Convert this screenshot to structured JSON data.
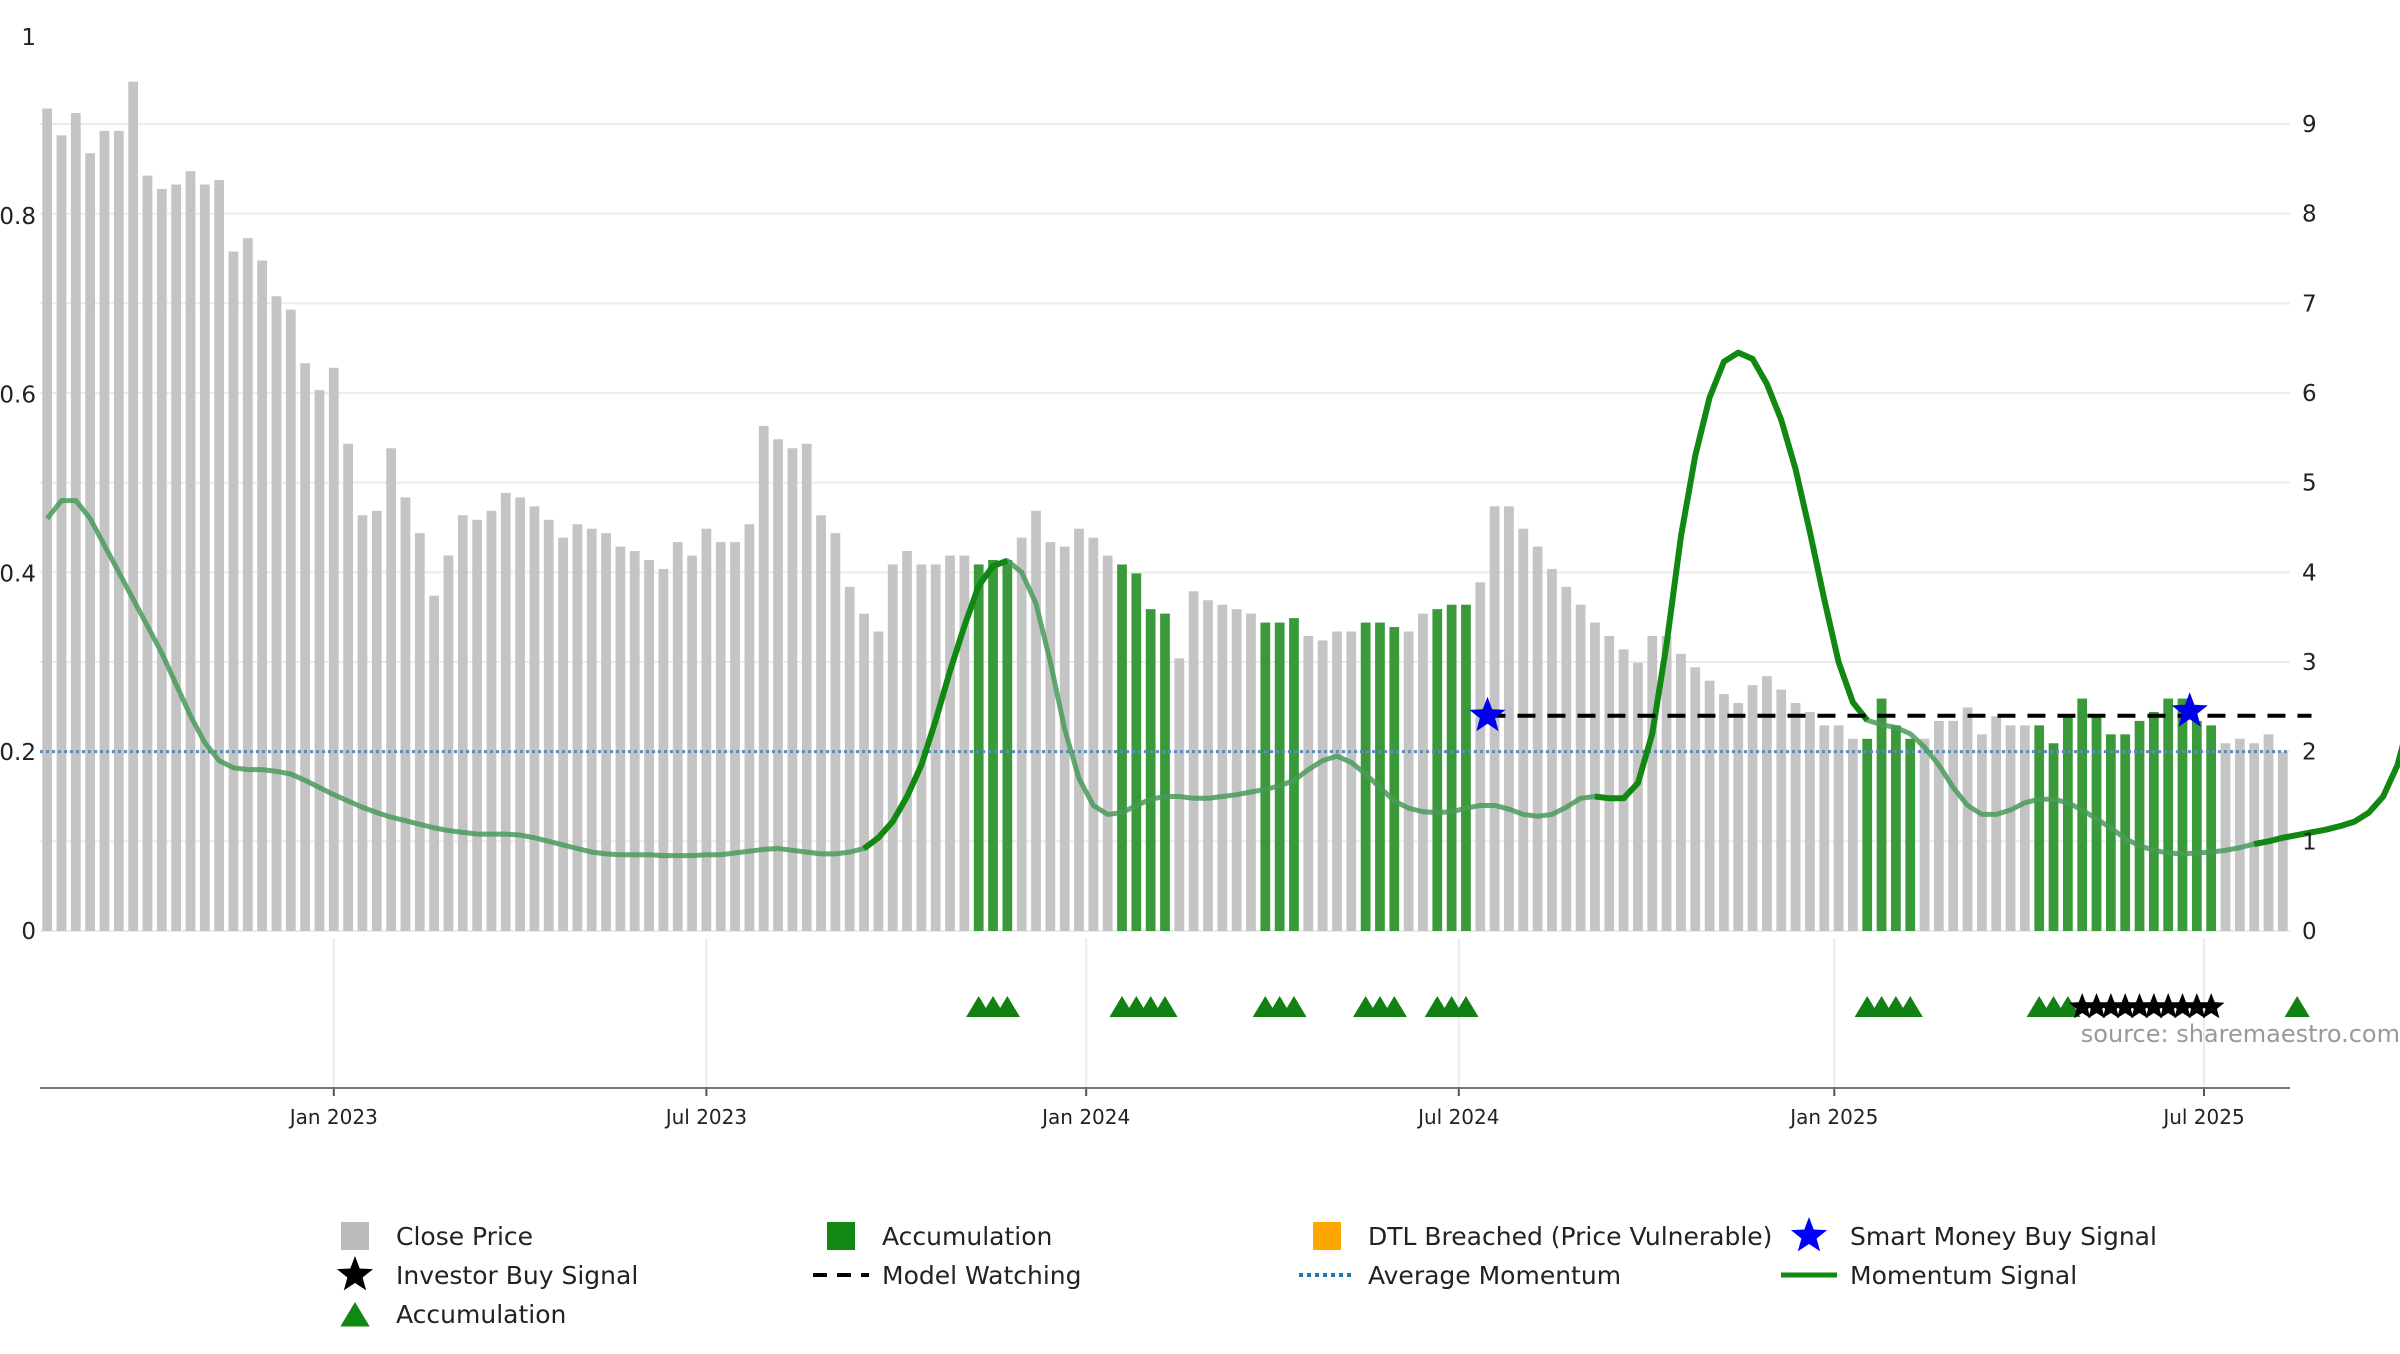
{
  "chart_data": {
    "type": "bar",
    "title": "",
    "x_axis": {
      "ticks": [
        {
          "label": "Jan 2023",
          "week": 20
        },
        {
          "label": "Jul 2023",
          "week": 46
        },
        {
          "label": "Jan 2024",
          "week": 72.5
        },
        {
          "label": "Jul 2024",
          "week": 98.5
        },
        {
          "label": "Jan 2025",
          "week": 124.7
        },
        {
          "label": "Jul 2025",
          "week": 150.5
        }
      ]
    },
    "y_left": {
      "label": "",
      "range": [
        0,
        1
      ],
      "ticks": [
        "0",
        "0.2",
        "0.4",
        "0.6",
        "0.8",
        "1"
      ],
      "tick_values": [
        0,
        0.2,
        0.4,
        0.6,
        0.8,
        1
      ]
    },
    "y_right": {
      "label": "",
      "range": [
        0,
        9
      ],
      "ticks": [
        "0",
        "1",
        "2",
        "3",
        "4",
        "5",
        "6",
        "7",
        "8",
        "9"
      ]
    },
    "close_price": [
      0.92,
      0.89,
      0.915,
      0.87,
      0.895,
      0.895,
      0.95,
      0.845,
      0.83,
      0.835,
      0.85,
      0.835,
      0.84,
      0.76,
      0.775,
      0.75,
      0.71,
      0.695,
      0.635,
      0.605,
      0.63,
      0.545,
      0.465,
      0.47,
      0.54,
      0.485,
      0.445,
      0.375,
      0.42,
      0.465,
      0.46,
      0.47,
      0.49,
      0.485,
      0.475,
      0.46,
      0.44,
      0.455,
      0.45,
      0.445,
      0.43,
      0.425,
      0.415,
      0.405,
      0.435,
      0.42,
      0.45,
      0.435,
      0.435,
      0.455,
      0.565,
      0.55,
      0.54,
      0.545,
      0.465,
      0.445,
      0.385,
      0.355,
      0.335,
      0.41,
      0.425,
      0.41,
      0.41,
      0.42,
      0.42,
      0.41,
      0.415,
      0.415,
      0.44,
      0.47,
      0.435,
      0.43,
      0.45,
      0.44,
      0.42,
      0.41,
      0.4,
      0.36,
      0.355,
      0.305,
      0.38,
      0.37,
      0.365,
      0.36,
      0.355,
      0.345,
      0.345,
      0.35,
      0.33,
      0.325,
      0.335,
      0.335,
      0.345,
      0.345,
      0.34,
      0.335,
      0.355,
      0.36,
      0.365,
      0.365,
      0.39,
      0.475,
      0.475,
      0.45,
      0.43,
      0.405,
      0.385,
      0.365,
      0.345,
      0.33,
      0.315,
      0.3,
      0.33,
      0.33,
      0.31,
      0.295,
      0.28,
      0.265,
      0.255,
      0.275,
      0.285,
      0.27,
      0.255,
      0.245,
      0.23,
      0.23,
      0.215,
      0.215,
      0.26,
      0.23,
      0.215,
      0.215,
      0.235,
      0.235,
      0.25,
      0.22,
      0.24,
      0.23,
      0.23,
      0.23,
      0.21,
      0.24,
      0.26,
      0.24,
      0.22,
      0.22,
      0.235,
      0.245,
      0.26,
      0.26,
      0.235,
      0.23,
      0.21,
      0.215,
      0.21,
      0.22,
      0.2
    ],
    "accumulation_weeks": [
      65,
      66,
      67,
      75,
      76,
      77,
      78,
      85,
      86,
      87,
      92,
      93,
      94,
      97,
      98,
      99,
      127,
      128,
      129,
      130,
      139,
      140,
      141,
      142,
      143,
      144,
      145,
      146,
      147,
      148,
      149,
      150,
      151,
      157
    ],
    "accumulation_markers": [
      {
        "series": "Accumulation",
        "weeks": [
          65,
          66,
          67,
          75,
          76,
          77,
          78,
          85,
          86,
          87,
          92,
          93,
          94,
          97,
          98,
          99,
          127,
          128,
          129,
          130,
          139,
          140,
          141,
          157
        ]
      },
      {
        "series": "Investor Buy Signal",
        "weeks": [
          142,
          143,
          144,
          145,
          146,
          147,
          148,
          149,
          150,
          151
        ]
      }
    ],
    "momentum_signal": [
      4.6,
      4.8,
      4.8,
      4.6,
      4.3,
      4.0,
      3.7,
      3.4,
      3.1,
      2.75,
      2.4,
      2.1,
      1.9,
      1.82,
      1.8,
      1.8,
      1.78,
      1.75,
      1.68,
      1.6,
      1.52,
      1.45,
      1.38,
      1.32,
      1.27,
      1.23,
      1.19,
      1.15,
      1.12,
      1.1,
      1.08,
      1.08,
      1.08,
      1.07,
      1.04,
      1.0,
      0.96,
      0.92,
      0.88,
      0.86,
      0.85,
      0.85,
      0.85,
      0.84,
      0.84,
      0.84,
      0.85,
      0.85,
      0.87,
      0.89,
      0.91,
      0.92,
      0.9,
      0.88,
      0.86,
      0.86,
      0.88,
      0.92,
      1.04,
      1.22,
      1.5,
      1.85,
      2.35,
      2.9,
      3.4,
      3.85,
      4.07,
      4.13,
      4.0,
      3.65,
      3.0,
      2.25,
      1.7,
      1.4,
      1.3,
      1.32,
      1.4,
      1.47,
      1.5,
      1.5,
      1.48,
      1.48,
      1.5,
      1.52,
      1.55,
      1.58,
      1.62,
      1.68,
      1.8,
      1.9,
      1.95,
      1.88,
      1.75,
      1.6,
      1.45,
      1.37,
      1.33,
      1.32,
      1.33,
      1.37,
      1.4,
      1.4,
      1.36,
      1.3,
      1.28,
      1.3,
      1.38,
      1.48,
      1.5,
      1.48,
      1.48,
      1.65,
      2.2,
      3.2,
      4.4,
      5.3,
      5.95,
      6.35,
      6.45,
      6.38,
      6.1,
      5.7,
      5.15,
      4.45,
      3.7,
      3.0,
      2.55,
      2.35,
      2.3,
      2.27,
      2.2,
      2.05,
      1.85,
      1.6,
      1.4,
      1.3,
      1.3,
      1.35,
      1.43,
      1.47,
      1.47,
      1.43,
      1.35,
      1.25,
      1.15,
      1.03,
      0.95,
      0.9,
      0.87,
      0.86,
      0.87,
      0.88,
      0.9,
      0.93,
      0.97,
      1.0,
      1.04,
      1.07,
      1.1,
      1.13,
      1.17,
      1.22,
      1.32,
      1.5,
      1.85,
      2.45,
      3.1,
      3.55,
      2.35,
      1.55,
      1.55
    ],
    "momentum_bold_ranges": [
      [
        57,
        67
      ],
      [
        108,
        127
      ],
      [
        154,
        165
      ]
    ],
    "average_momentum": 2.0,
    "model_watching": {
      "start_week": 100.5,
      "end_week": 158,
      "level": 2.4
    },
    "smart_money_buy_signals": [
      {
        "week": 100.5,
        "level": 2.4
      },
      {
        "week": 149.5,
        "level": 2.45
      }
    ],
    "watermark": "source: sharemaestro.com",
    "legend": {
      "placement": "bottom",
      "items": [
        {
          "label": "Close Price",
          "kind": "square",
          "color": "#bbbbbb"
        },
        {
          "label": "Accumulation",
          "kind": "square",
          "color": "#118811"
        },
        {
          "label": "DTL Breached (Price Vulnerable)",
          "kind": "square",
          "color": "#ffa500"
        },
        {
          "label": "Smart Money Buy Signal",
          "kind": "star",
          "color": "#0000ff"
        },
        {
          "label": "Investor Buy Signal",
          "kind": "star",
          "color": "#000000"
        },
        {
          "label": "Model Watching",
          "kind": "dash",
          "color": "#000000"
        },
        {
          "label": "Average Momentum",
          "kind": "dot",
          "color": "#1f77b4"
        },
        {
          "label": "Momentum Signal",
          "kind": "line",
          "color": "#118811"
        },
        {
          "label": "Accumulation",
          "kind": "triangle",
          "color": "#118811"
        }
      ]
    },
    "colors": {
      "close": "#c4c4c4",
      "accumulation": "#3a9a3a",
      "marker": "#128012",
      "momentum": "#118811",
      "momentum_faded": "#4a9a5a",
      "avg_momentum": "#5b8db8",
      "watching": "#000000",
      "smart_star": "#0000ee",
      "grid": "#ececec",
      "axis_text": "#222222",
      "watermark": "#999999"
    },
    "grid": true
  }
}
